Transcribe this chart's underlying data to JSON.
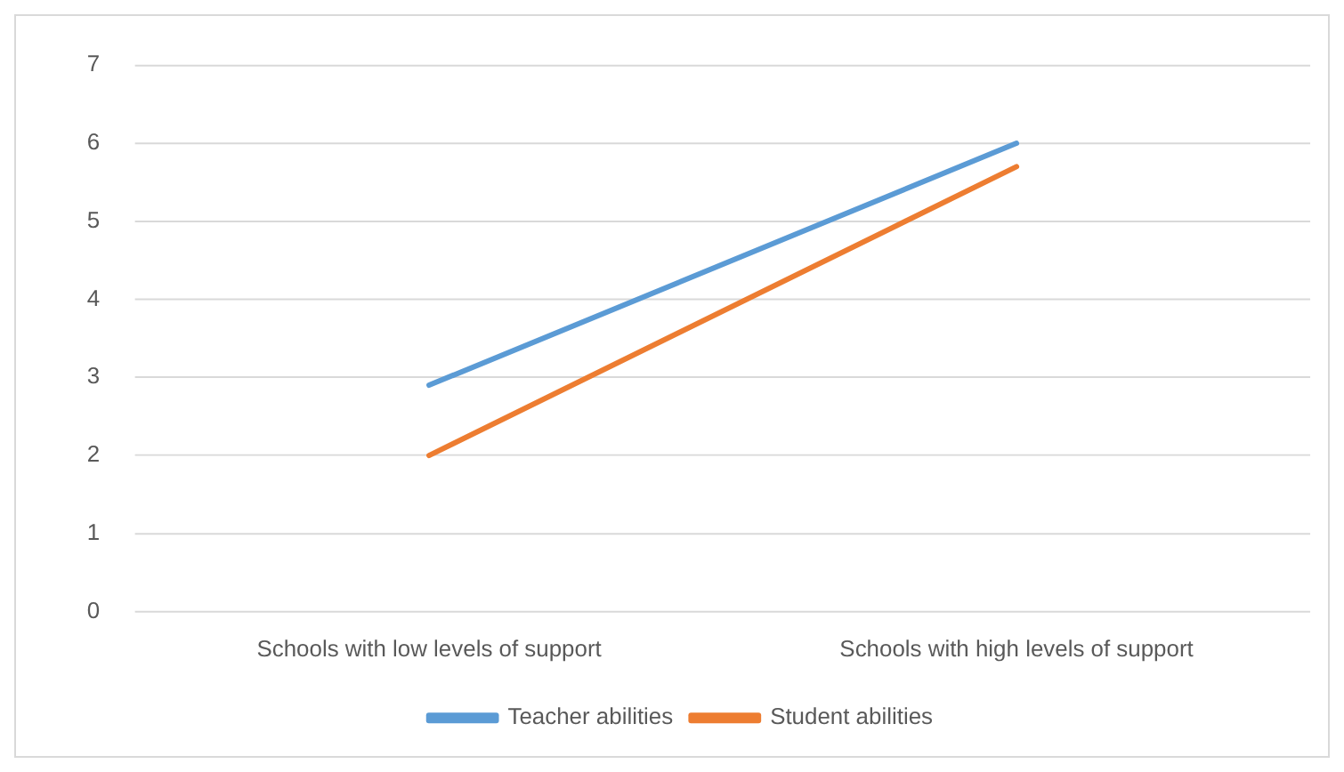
{
  "chart_data": {
    "type": "line",
    "categories": [
      "Schools with low levels of support",
      "Schools with high levels of support"
    ],
    "series": [
      {
        "name": "Teacher abilities",
        "color": "#5b9bd5",
        "values": [
          2.9,
          6.0
        ]
      },
      {
        "name": "Student abilities",
        "color": "#ed7d31",
        "values": [
          2.0,
          5.7
        ]
      }
    ],
    "ylim": [
      0,
      7
    ],
    "yticks": [
      0,
      1,
      2,
      3,
      4,
      5,
      6,
      7
    ],
    "grid": "y",
    "legend": "bottom",
    "marker": "none",
    "line_style": "solid"
  }
}
